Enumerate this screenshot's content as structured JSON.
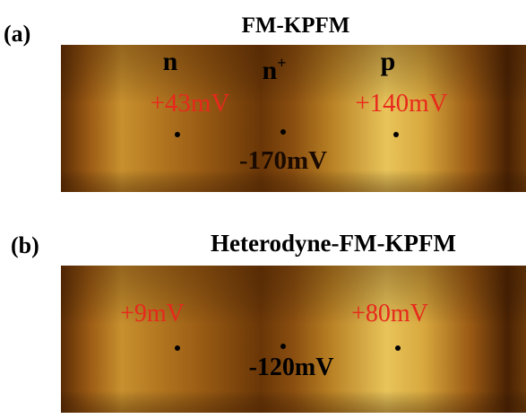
{
  "panels": [
    {
      "label": "(a)",
      "title": "FM-KPFM",
      "annotations": [
        {
          "text": "n"
        },
        {
          "text": "n",
          "superscript": "+"
        },
        {
          "text": "p"
        },
        {
          "text": "+43mV"
        },
        {
          "text": "+140mV"
        },
        {
          "text": "-170mV"
        }
      ]
    },
    {
      "label": "(b)",
      "title": "Heterodyne-FM-KPFM",
      "annotations": [
        {
          "text": "+9mV"
        },
        {
          "text": "+80mV"
        },
        {
          "text": "-120mV"
        }
      ]
    }
  ]
}
